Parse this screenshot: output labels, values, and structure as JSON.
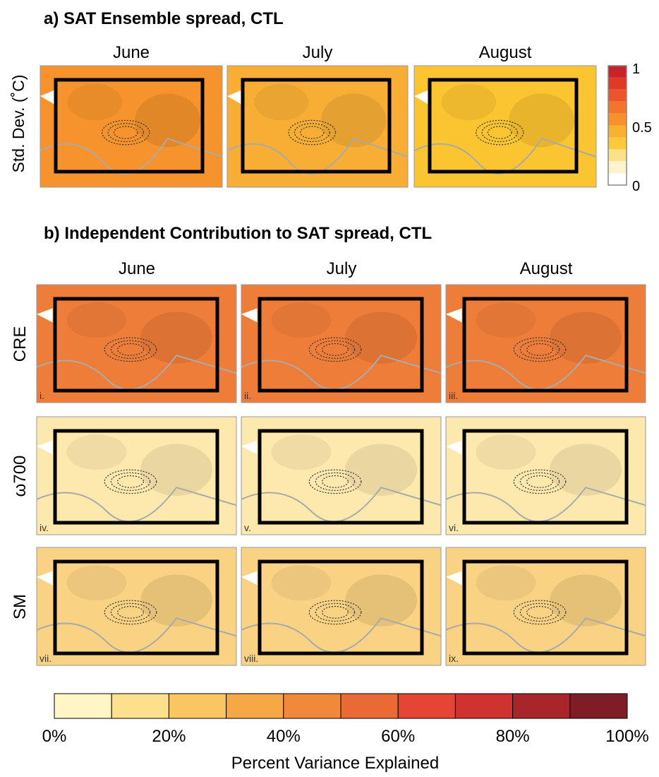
{
  "panel_a": {
    "title": "a) SAT Ensemble spread, CTL",
    "y_label": "Std. Dev. (˚C)",
    "months": [
      "June",
      "July",
      "August"
    ],
    "fills": [
      "#f6932c",
      "#f8ad35",
      "#fbc431"
    ],
    "colorbar": {
      "colors": [
        "#ffffff",
        "#fef3cf",
        "#fde08a",
        "#fcc93a",
        "#fab032",
        "#f7912c",
        "#f3742b",
        "#ec552b",
        "#df3a28",
        "#c9232a"
      ],
      "ticks": [
        "1",
        "0.5",
        "0"
      ]
    }
  },
  "panel_b": {
    "title": "b) Independent Contribution to SAT spread, CTL",
    "months": [
      "June",
      "July",
      "August"
    ],
    "rows": [
      {
        "label": "CRE",
        "fill": "#ef7d3a",
        "panels": [
          "i.",
          "ii.",
          "iii."
        ]
      },
      {
        "label": "ω700",
        "fill": "#fde8ad",
        "panels": [
          "iv.",
          "v.",
          "vi."
        ]
      },
      {
        "label": "SM",
        "fill": "#f9d283",
        "panels": [
          "vii.",
          "viii.",
          "ix."
        ]
      }
    ],
    "colorbar": {
      "colors": [
        "#fff5c6",
        "#fde08c",
        "#f9c662",
        "#f5a845",
        "#f08a3a",
        "#ea6a35",
        "#e44535",
        "#cf3330",
        "#a8262a",
        "#7f1d27"
      ],
      "ticks": [
        "0%",
        "20%",
        "40%",
        "60%",
        "80%",
        "100%"
      ],
      "label": "Percent Variance Explained"
    }
  }
}
